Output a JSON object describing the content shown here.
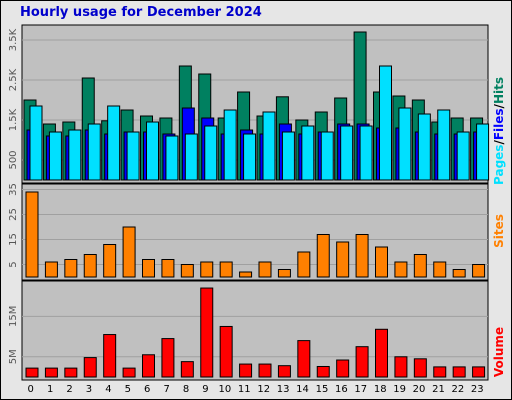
{
  "title": "Hourly usage for December 2024",
  "colors": {
    "hits": "#008060",
    "files": "#0000ff",
    "pages": "#00e0ff",
    "sites": "#ff8000",
    "volume": "#ff0000",
    "panel_bg": "#c0c0c0",
    "frame_bg": "#e6e6e6"
  },
  "chart_data": [
    {
      "type": "bar",
      "panel": "hits-files-pages",
      "categories": [
        "0",
        "1",
        "2",
        "3",
        "4",
        "5",
        "6",
        "7",
        "8",
        "9",
        "10",
        "11",
        "12",
        "13",
        "14",
        "15",
        "16",
        "17",
        "18",
        "19",
        "20",
        "21",
        "22",
        "23"
      ],
      "series": [
        {
          "name": "Hits",
          "values": [
            2000,
            1400,
            1450,
            2550,
            1480,
            1750,
            1600,
            1550,
            2850,
            2650,
            1550,
            2200,
            1600,
            2080,
            1500,
            1700,
            2050,
            3700,
            2200,
            2100,
            2000,
            1450,
            1550,
            1550
          ]
        },
        {
          "name": "Files",
          "values": [
            1250,
            1100,
            1100,
            1250,
            1150,
            1200,
            1200,
            1150,
            1800,
            1550,
            1150,
            1250,
            1150,
            1400,
            1150,
            1200,
            1400,
            1400,
            1300,
            1300,
            1200,
            1150,
            1150,
            1200
          ]
        },
        {
          "name": "Pages",
          "values": [
            1850,
            1200,
            1250,
            1400,
            1850,
            1200,
            1450,
            1100,
            1150,
            1350,
            1750,
            1150,
            1700,
            1200,
            1350,
            1200,
            1350,
            1350,
            2850,
            1800,
            1650,
            1750,
            1200,
            1400
          ]
        }
      ],
      "ytick_labels": [
        "500",
        "1.5K",
        "2.5K",
        "3.5K"
      ],
      "ylim": [
        0,
        3800
      ],
      "side_label_parts": [
        "Pages",
        "/",
        "Files",
        "/",
        "Hits"
      ]
    },
    {
      "type": "bar",
      "panel": "sites",
      "categories": [
        "0",
        "1",
        "2",
        "3",
        "4",
        "5",
        "6",
        "7",
        "8",
        "9",
        "10",
        "11",
        "12",
        "13",
        "14",
        "15",
        "16",
        "17",
        "18",
        "19",
        "20",
        "21",
        "22",
        "23"
      ],
      "series": [
        {
          "name": "Sites",
          "values": [
            34,
            6,
            7,
            9,
            13,
            20,
            7,
            7,
            5,
            6,
            6,
            2,
            6,
            3,
            10,
            17,
            14,
            17,
            12,
            6,
            9,
            6,
            3,
            5
          ]
        }
      ],
      "ytick_labels": [
        "5",
        "15",
        "25",
        "35"
      ],
      "ylim": [
        0,
        36
      ],
      "side_label": "Sites"
    },
    {
      "type": "bar",
      "panel": "volume",
      "categories": [
        "0",
        "1",
        "2",
        "3",
        "4",
        "5",
        "6",
        "7",
        "8",
        "9",
        "10",
        "11",
        "12",
        "13",
        "14",
        "15",
        "16",
        "17",
        "18",
        "19",
        "20",
        "21",
        "22",
        "23"
      ],
      "series": [
        {
          "name": "Volume",
          "values": [
            2.2,
            2.2,
            2.2,
            4.8,
            10.5,
            2.2,
            5.5,
            9.5,
            3.8,
            22,
            12.5,
            3.2,
            3.2,
            2.8,
            9,
            2.6,
            4.2,
            7.5,
            11.8,
            5,
            4.5,
            2.5,
            2.5,
            2.5
          ]
        }
      ],
      "ytick_labels": [
        "5M",
        "15M"
      ],
      "ylim": [
        0,
        23
      ],
      "side_label": "Volume"
    }
  ],
  "x_labels": [
    "0",
    "1",
    "2",
    "3",
    "4",
    "5",
    "6",
    "7",
    "8",
    "9",
    "10",
    "11",
    "12",
    "13",
    "14",
    "15",
    "16",
    "17",
    "18",
    "19",
    "20",
    "21",
    "22",
    "23"
  ]
}
